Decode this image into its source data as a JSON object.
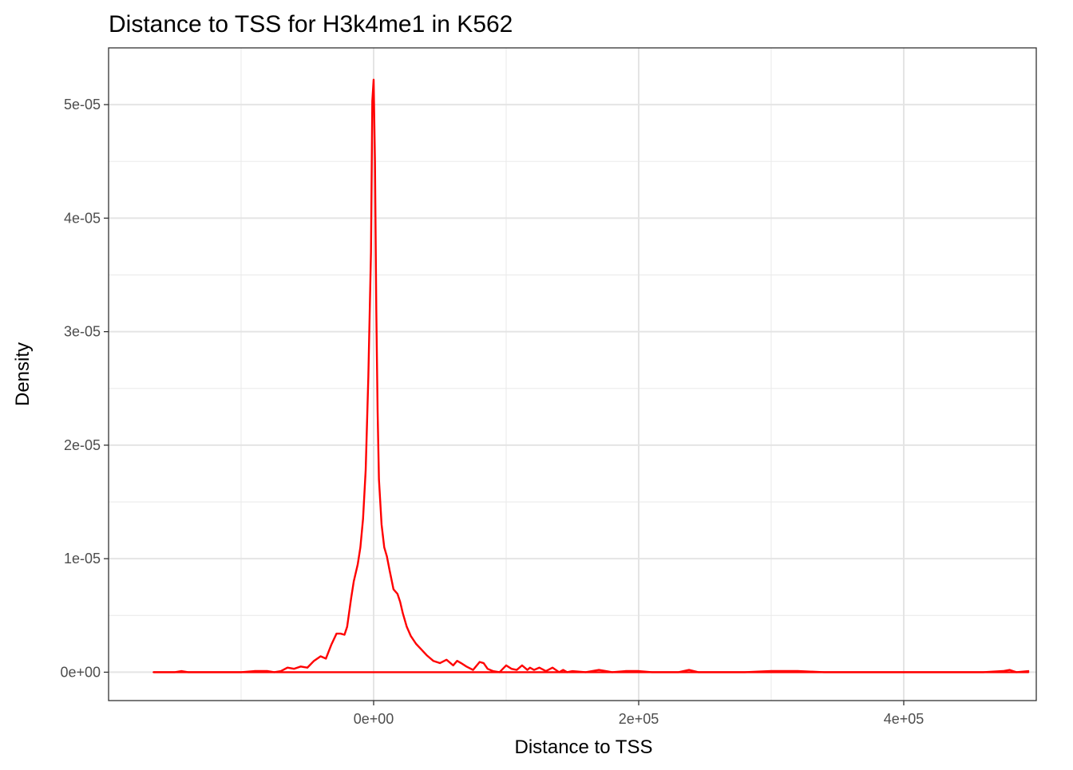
{
  "chart_data": {
    "type": "line",
    "title": "Distance to TSS for H3k4me1 in K562",
    "xlabel": "Distance to TSS",
    "ylabel": "Density",
    "xlim": [
      -200000,
      500000
    ],
    "ylim": [
      -2.5e-06,
      5.5e-05
    ],
    "x_ticks": [
      {
        "value": 0,
        "label": "0e+00"
      },
      {
        "value": 200000,
        "label": "2e+05"
      },
      {
        "value": 400000,
        "label": "4e+05"
      }
    ],
    "y_ticks": [
      {
        "value": 0,
        "label": "0e+00"
      },
      {
        "value": 1e-05,
        "label": "1e-05"
      },
      {
        "value": 2e-05,
        "label": "2e-05"
      },
      {
        "value": 3e-05,
        "label": "3e-05"
      },
      {
        "value": 4e-05,
        "label": "4e-05"
      },
      {
        "value": 5e-05,
        "label": "5e-05"
      }
    ],
    "grid": true,
    "line_color": "#ff0000",
    "series": [
      {
        "x": [
          -166000,
          -160000,
          -150000,
          -145000,
          -140000,
          -130000,
          -120000,
          -110000,
          -100000,
          -90000,
          -80000,
          -75000,
          -70000,
          -65000,
          -60000,
          -55000,
          -50000,
          -45000,
          -40000,
          -36000,
          -32000,
          -28000,
          -25000,
          -22000,
          -20000,
          -17000,
          -15000,
          -12000,
          -10000,
          -8000,
          -6000,
          -4000,
          -2000,
          -1000,
          0,
          1000,
          2000,
          3000,
          4000,
          6000,
          8000,
          10000,
          12000,
          15000,
          18000,
          20000,
          22000,
          25000,
          28000,
          32000,
          36000,
          40000,
          45000,
          50000,
          55000,
          60000,
          63000,
          66000,
          70000,
          75000,
          80000,
          83000,
          86000,
          90000,
          95000,
          100000,
          104000,
          108000,
          112000,
          116000,
          118000,
          121000,
          125000,
          130000,
          135000,
          140000,
          143000,
          146000,
          150000,
          160000,
          170000,
          180000,
          190000,
          200000,
          210000,
          220000,
          230000,
          238000,
          245000,
          260000,
          280000,
          300000,
          320000,
          340000,
          360000,
          380000,
          400000,
          420000,
          440000,
          460000,
          475000,
          480000,
          485000,
          494000
        ],
        "y": [
          0,
          0,
          0,
          1e-07,
          0,
          0,
          0,
          0,
          0,
          1e-07,
          1e-07,
          0,
          1e-07,
          4e-07,
          3e-07,
          5e-07,
          4e-07,
          1e-06,
          1.4e-06,
          1.2e-06,
          2.4e-06,
          3.4e-06,
          3.4e-06,
          3.3e-06,
          4e-06,
          6.5e-06,
          8e-06,
          9.5e-06,
          1.1e-05,
          1.35e-05,
          1.78e-05,
          2.6e-05,
          3.7e-05,
          5.03e-05,
          5.22e-05,
          4.5e-05,
          3.2e-05,
          2.3e-05,
          1.7e-05,
          1.3e-05,
          1.1e-05,
          1.02e-05,
          9e-06,
          7.3e-06,
          6.9e-06,
          6.2e-06,
          5.2e-06,
          4e-06,
          3.2e-06,
          2.5e-06,
          2e-06,
          1.5e-06,
          1e-06,
          8e-07,
          1.1e-06,
          6e-07,
          1e-06,
          8e-07,
          5e-07,
          2e-07,
          9e-07,
          8e-07,
          3e-07,
          1e-07,
          0,
          6e-07,
          3e-07,
          2e-07,
          6e-07,
          2e-07,
          4e-07,
          2e-07,
          4e-07,
          1e-07,
          4e-07,
          0,
          2e-07,
          0,
          1e-07,
          0,
          2e-07,
          0,
          1e-07,
          1e-07,
          0,
          0,
          0,
          2e-07,
          0,
          0,
          0,
          1e-07,
          1e-07,
          0,
          0,
          0,
          0,
          0,
          0,
          0,
          1e-07,
          2e-07,
          0,
          1e-07
        ]
      },
      {
        "x": [
          -166000,
          494000
        ],
        "y": [
          0,
          0
        ]
      }
    ]
  }
}
